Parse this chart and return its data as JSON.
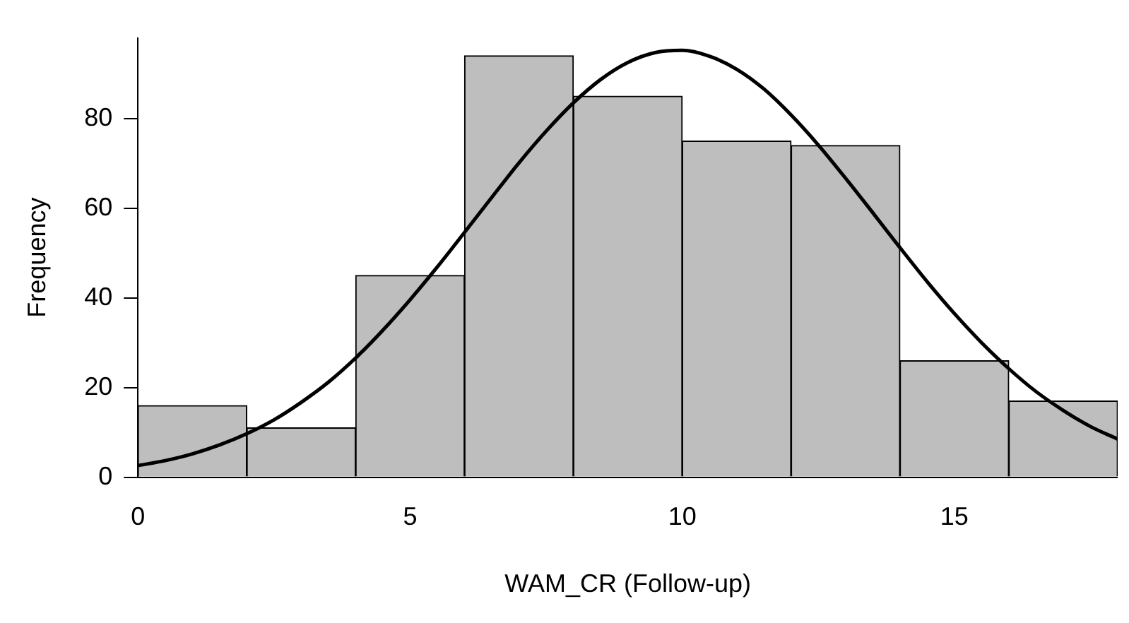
{
  "chart_data": {
    "type": "histogram",
    "xlabel": "WAM_CR (Follow-up)",
    "ylabel": "Frequency",
    "bins": [
      0,
      2,
      4,
      6,
      8,
      10,
      12,
      14,
      16,
      18
    ],
    "values": [
      16,
      11,
      45,
      94,
      85,
      75,
      74,
      26,
      17
    ],
    "color": "#bebebe",
    "xlim": [
      0,
      18
    ],
    "xticks": [
      0,
      5,
      10,
      15
    ],
    "ylim": [
      0,
      98
    ],
    "yticks": [
      0,
      20,
      40,
      60,
      80
    ],
    "grid": false,
    "legend": false,
    "marker": "none",
    "line_style": "solid",
    "series": [
      {
        "type": "line",
        "color": "#000000",
        "x": [
          0,
          0.5,
          1,
          1.5,
          2,
          2.5,
          3,
          3.5,
          4,
          4.5,
          5,
          5.5,
          6,
          6.5,
          7,
          7.5,
          8,
          8.5,
          9,
          9.5,
          10,
          10.5,
          11,
          11.5,
          12,
          12.5,
          13,
          13.5,
          14,
          14.5,
          15,
          15.5,
          16,
          16.5,
          17,
          17.5,
          18
        ],
        "values": [
          2.6,
          3.7,
          5.2,
          7.2,
          9.7,
          12.8,
          16.7,
          21.2,
          26.6,
          32.8,
          39.6,
          46.9,
          54.6,
          62.4,
          70.1,
          77.2,
          83.5,
          88.7,
          92.5,
          94.7,
          95.2,
          93.9,
          91.0,
          86.6,
          80.8,
          74.1,
          66.7,
          59.0,
          51.2,
          43.6,
          36.5,
          30.0,
          24.2,
          19.1,
          14.9,
          11.3,
          8.5
        ]
      }
    ]
  }
}
